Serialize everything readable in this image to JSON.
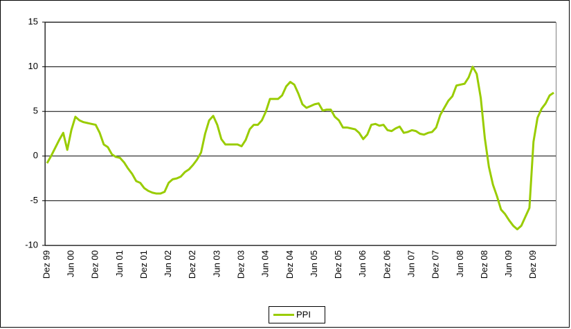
{
  "chart_data": {
    "type": "line",
    "categories": [
      "Dez 99",
      null,
      null,
      null,
      null,
      null,
      "Jun 00",
      null,
      null,
      null,
      null,
      null,
      "Dez 00",
      null,
      null,
      null,
      null,
      null,
      "Jun 01",
      null,
      null,
      null,
      null,
      null,
      "Dez 01",
      null,
      null,
      null,
      null,
      null,
      "Jun 02",
      null,
      null,
      null,
      null,
      null,
      "Dez 02",
      null,
      null,
      null,
      null,
      null,
      "Jun 03",
      null,
      null,
      null,
      null,
      null,
      "Dez 03",
      null,
      null,
      null,
      null,
      null,
      "Jun 04",
      null,
      null,
      null,
      null,
      null,
      "Dez 04",
      null,
      null,
      null,
      null,
      null,
      "Jun 05",
      null,
      null,
      null,
      null,
      null,
      "Dez 05",
      null,
      null,
      null,
      null,
      null,
      "Jun 06",
      null,
      null,
      null,
      null,
      null,
      "Dez 06",
      null,
      null,
      null,
      null,
      null,
      "Jun 07",
      null,
      null,
      null,
      null,
      null,
      "Dez 07",
      null,
      null,
      null,
      null,
      null,
      "Jun 08",
      null,
      null,
      null,
      null,
      null,
      "Dez 08",
      null,
      null,
      null,
      null,
      null,
      "Jun 09",
      null,
      null,
      null,
      null,
      null,
      "Dez 09",
      null,
      null,
      null,
      null,
      null
    ],
    "series": [
      {
        "name": "PPI",
        "color": "#99cc00",
        "values": [
          -0.8,
          0.0,
          0.9,
          1.8,
          2.6,
          0.7,
          2.9,
          4.4,
          4.0,
          3.8,
          3.7,
          3.6,
          3.5,
          2.6,
          1.3,
          1.0,
          0.2,
          -0.1,
          -0.2,
          -0.7,
          -1.4,
          -2.0,
          -2.8,
          -3.0,
          -3.6,
          -3.9,
          -4.1,
          -4.2,
          -4.2,
          -4.0,
          -3.0,
          -2.6,
          -2.5,
          -2.3,
          -1.8,
          -1.5,
          -1.0,
          -0.4,
          0.4,
          2.5,
          4.0,
          4.5,
          3.5,
          1.9,
          1.3,
          1.3,
          1.3,
          1.3,
          1.1,
          1.8,
          3.0,
          3.5,
          3.5,
          4.0,
          5.0,
          6.4,
          6.4,
          6.4,
          6.8,
          7.8,
          8.3,
          8.0,
          7.0,
          5.8,
          5.4,
          5.6,
          5.8,
          5.9,
          5.1,
          5.2,
          5.2,
          4.4,
          4.0,
          3.2,
          3.2,
          3.1,
          3.0,
          2.6,
          1.9,
          2.4,
          3.5,
          3.6,
          3.4,
          3.5,
          2.9,
          2.8,
          3.1,
          3.3,
          2.6,
          2.7,
          2.9,
          2.8,
          2.5,
          2.4,
          2.6,
          2.7,
          3.2,
          4.6,
          5.4,
          6.2,
          6.7,
          7.9,
          8.0,
          8.1,
          8.8,
          10.0,
          9.2,
          6.5,
          2.0,
          -1.2,
          -3.2,
          -4.5,
          -6.0,
          -6.5,
          -7.2,
          -7.8,
          -8.2,
          -7.8,
          -6.8,
          -5.8,
          1.6,
          4.3,
          5.3,
          5.9,
          6.8,
          7.1
        ]
      }
    ],
    "ylim": [
      -10,
      15
    ],
    "yticks": [
      -10,
      -5,
      0,
      5,
      10,
      15
    ],
    "grid": true
  }
}
